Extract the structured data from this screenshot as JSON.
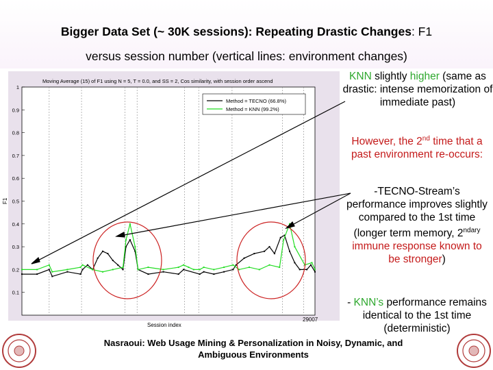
{
  "slide": {
    "title_bold": "Bigger Data Set (~ 30K sessions): Repeating Drastic Changes",
    "title_rest": ": F1",
    "subtitle": "versus session number (vertical lines: environment changes)",
    "callout_knn": {
      "knn": "KNN",
      "slightly": " slightly ",
      "higher": "higher",
      "rest": " (same as drastic: intense memorization of immediate past)"
    },
    "callout_however": {
      "pre": "However, the 2",
      "sup": "nd",
      "post": " time that a past environment re-occurs:"
    },
    "callout_tecno": {
      "line1": "-TECNO-Stream’s performance improves slightly compared to the 1st time (longer term memory, 2",
      "sup": "ndary",
      "red1": " immune response known to be stronger",
      "close": ")"
    },
    "callout_knn2": {
      "dash": "- ",
      "knn": "KNN’s",
      "rest": " performance remains identical to the 1st time (deterministic)"
    },
    "footer": "Nasraoui: Web Usage Mining & Personalization in Noisy, Dynamic, and Ambiguous Environments"
  },
  "colors": {
    "tecno": "#000000",
    "knn": "#22dd22",
    "annotation_circle": "#cc2222",
    "panel": "#e9e1ec"
  },
  "chart_data": {
    "type": "line",
    "title": "Moving Average (15) of F1 using N = 5, T = 0.0, and SS = 2, Cos similarity, with session order ascend",
    "xlabel": "Session index",
    "ylabel": "F1",
    "xlim": [
      0,
      29007
    ],
    "ylim": [
      0,
      1
    ],
    "yticks": [
      "0.1",
      "0.2",
      "0.3",
      "0.4",
      "0.5",
      "0.6",
      "0.7",
      "0.8",
      "0.9",
      "1"
    ],
    "x_end_label": "29007",
    "legend": [
      "Method = TECNO (66.8%)",
      "Method = KNN   (99.2%)"
    ],
    "legend_position": "top-right",
    "environment_changes": [
      2700,
      5900,
      10200,
      11400,
      16100,
      17500,
      20800,
      25800,
      27900
    ],
    "series": [
      {
        "name": "Method = TECNO (66.8%)",
        "x": [
          0,
          1500,
          2700,
          3000,
          4500,
          5800,
          6000,
          6500,
          7000,
          7500,
          8000,
          8500,
          9000,
          9500,
          10000,
          10300,
          10700,
          11200,
          11500,
          12500,
          14000,
          15500,
          16000,
          17600,
          18000,
          19000,
          20000,
          20900,
          21200,
          22000,
          23000,
          24000,
          24500,
          25000,
          25600,
          26000,
          26500,
          27000,
          27500,
          28200,
          28600,
          29007
        ],
        "y": [
          0.18,
          0.18,
          0.2,
          0.17,
          0.19,
          0.18,
          0.2,
          0.22,
          0.2,
          0.25,
          0.28,
          0.27,
          0.24,
          0.22,
          0.2,
          0.3,
          0.33,
          0.28,
          0.2,
          0.18,
          0.19,
          0.18,
          0.2,
          0.18,
          0.19,
          0.18,
          0.19,
          0.2,
          0.22,
          0.25,
          0.27,
          0.28,
          0.3,
          0.27,
          0.34,
          0.35,
          0.28,
          0.23,
          0.2,
          0.2,
          0.22,
          0.19
        ]
      },
      {
        "name": "Method = KNN   (99.2%)",
        "x": [
          0,
          1500,
          2700,
          3000,
          4500,
          5800,
          6000,
          7000,
          8000,
          9000,
          10000,
          10300,
          10700,
          11200,
          11500,
          12500,
          14000,
          15500,
          16000,
          16500,
          17000,
          17600,
          18000,
          19000,
          20000,
          20900,
          21500,
          22500,
          23500,
          24500,
          25500,
          25900,
          26500,
          27000,
          28000,
          28700,
          29007
        ],
        "y": [
          0.2,
          0.2,
          0.22,
          0.19,
          0.2,
          0.21,
          0.22,
          0.2,
          0.19,
          0.2,
          0.21,
          0.33,
          0.4,
          0.3,
          0.2,
          0.21,
          0.2,
          0.21,
          0.22,
          0.21,
          0.2,
          0.2,
          0.21,
          0.2,
          0.21,
          0.22,
          0.2,
          0.21,
          0.2,
          0.22,
          0.21,
          0.33,
          0.4,
          0.3,
          0.22,
          0.23,
          0.2
        ]
      }
    ]
  }
}
